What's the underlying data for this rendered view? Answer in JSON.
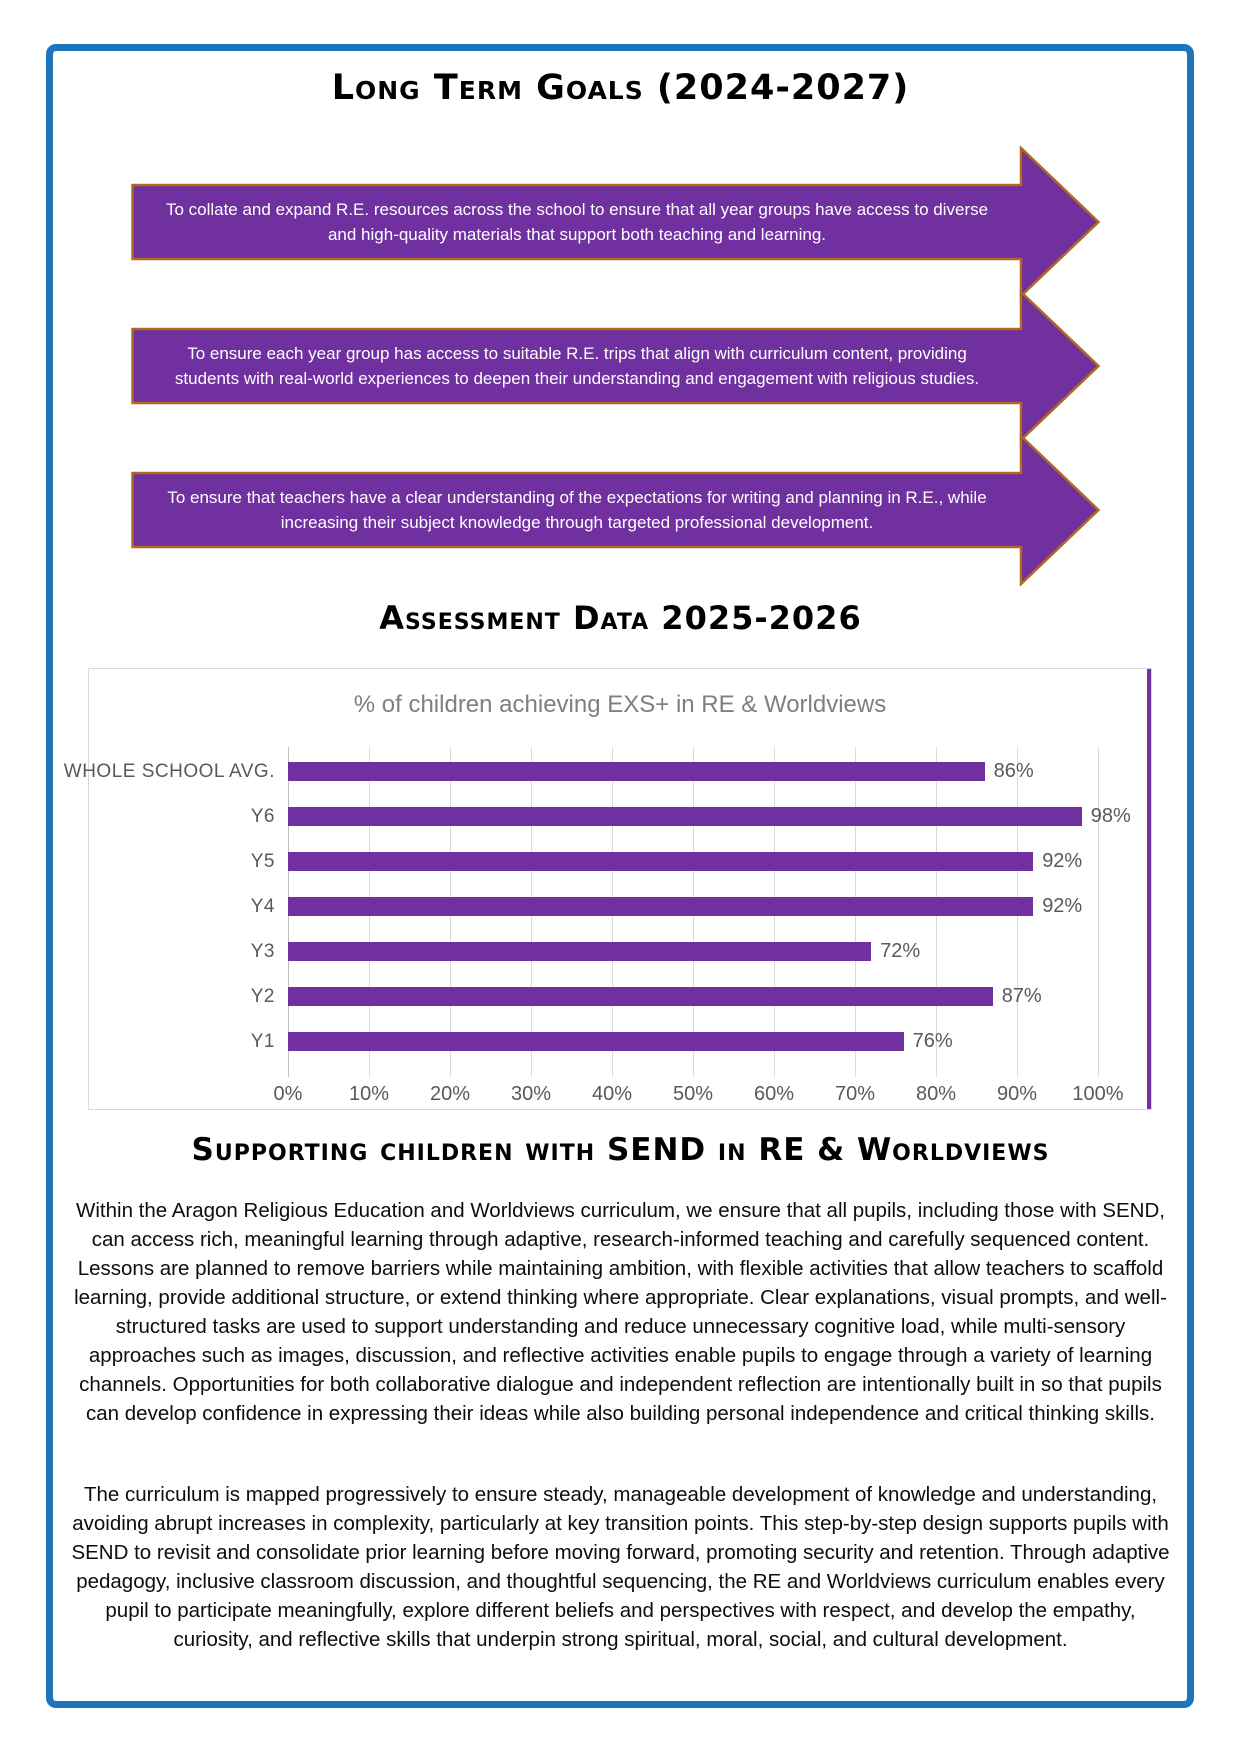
{
  "page": {
    "title": "Long Term Goals (2024-2027)",
    "goals": [
      {
        "text": "To collate and expand R.E. resources across the school to ensure that all year groups have access to diverse and high-quality materials that support both teaching and learning."
      },
      {
        "text": "To ensure each year group has access to suitable R.E. trips that align with curriculum content, providing students with real-world experiences to deepen their understanding and engagement with religious studies."
      },
      {
        "text": "To ensure that teachers have a clear understanding of the expectations for writing and planning in R.E., while increasing their subject knowledge through targeted professional development."
      }
    ],
    "assessment_heading": "Assessment Data 2025-2026",
    "send_heading": "Supporting children with SEND in RE & Worldviews",
    "paragraphs": [
      "Within the Aragon Religious Education and Worldviews curriculum, we ensure that all pupils, including those with SEND, can access rich, meaningful learning through adaptive, research-informed teaching and carefully sequenced content. Lessons are planned to remove barriers while maintaining ambition, with flexible activities that allow teachers to scaffold learning, provide additional structure, or extend thinking where appropriate. Clear explanations, visual prompts, and well-structured tasks are used to support understanding and reduce unnecessary cognitive load, while multi-sensory approaches such as images, discussion, and reflective activities enable pupils to engage through a variety of learning channels. Opportunities for both collaborative dialogue and independent reflection are intentionally built in so that pupils can develop confidence in expressing their ideas while also building personal independence and critical thinking skills.",
      "The curriculum is mapped progressively to ensure steady, manageable development of knowledge and understanding, avoiding abrupt increases in complexity, particularly at key transition points. This step-by-step design supports pupils with SEND to revisit and consolidate prior learning before moving forward, promoting security and retention. Through adaptive pedagogy, inclusive classroom discussion, and thoughtful sequencing, the RE and Worldviews curriculum enables every pupil to participate meaningfully, explore different beliefs and perspectives with respect, and develop the empathy, curiosity, and reflective skills that underpin strong spiritual, moral, social, and cultural development."
    ]
  },
  "chart_data": {
    "type": "bar",
    "orientation": "horizontal",
    "title": "% of children achieving EXS+ in RE & Worldviews",
    "categories": [
      "WHOLE SCHOOL AVG.",
      "Y6",
      "Y5",
      "Y4",
      "Y3",
      "Y2",
      "Y1"
    ],
    "values": [
      86,
      98,
      92,
      92,
      72,
      87,
      76
    ],
    "data_labels": [
      "86%",
      "98%",
      "92%",
      "92%",
      "72%",
      "87%",
      "76%"
    ],
    "x_ticks": [
      "0%",
      "10%",
      "20%",
      "30%",
      "40%",
      "50%",
      "60%",
      "70%",
      "80%",
      "90%",
      "100%"
    ],
    "xlim": [
      0,
      100
    ],
    "grid": true,
    "legend_position": "none",
    "bar_color": "#7030A0",
    "label_color": "#595959",
    "title_color": "#7F7F7F"
  },
  "colors": {
    "arrow_fill": "#7030A0",
    "arrow_border": "#AE6A21",
    "frame_border": "#1B74BC",
    "chart_border": "#D9D9D9",
    "chart_right_stripe": "#7030A0"
  }
}
